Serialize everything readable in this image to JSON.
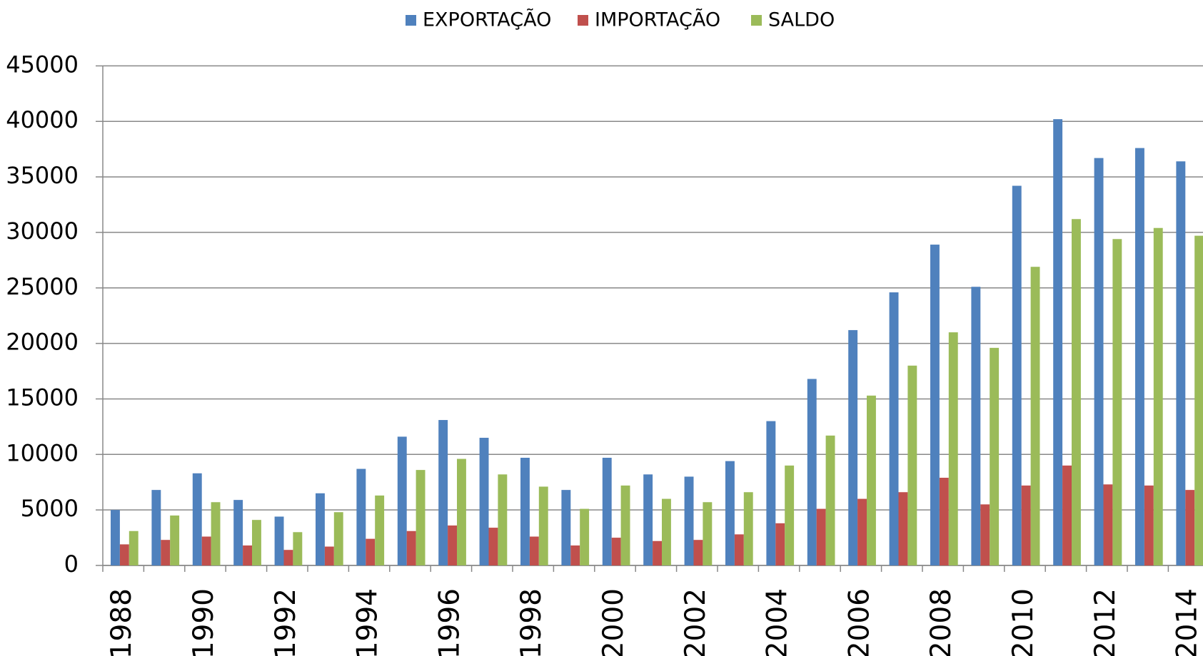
{
  "chart_data": {
    "type": "bar",
    "categories": [
      "1988",
      null,
      "1990",
      null,
      "1992",
      null,
      "1994",
      null,
      "1996",
      null,
      "1998",
      null,
      "2000",
      null,
      "2002",
      null,
      "2004",
      null,
      "2006",
      null,
      "2008",
      null,
      "2010",
      null,
      "2012",
      null,
      "2014"
    ],
    "series": [
      {
        "name": "EXPORTAÇÃO",
        "color": "#4f81bd",
        "values": [
          5000,
          6800,
          8300,
          5900,
          4400,
          6500,
          8700,
          11600,
          13100,
          11500,
          9700,
          6800,
          9700,
          8200,
          8000,
          9400,
          13000,
          16800,
          21200,
          24600,
          28900,
          25100,
          34200,
          40200,
          36700,
          37600,
          36400
        ]
      },
      {
        "name": "IMPORTAÇÃO",
        "color": "#c0504d",
        "values": [
          1900,
          2300,
          2600,
          1800,
          1400,
          1700,
          2400,
          3100,
          3600,
          3400,
          2600,
          1800,
          2500,
          2200,
          2300,
          2800,
          3800,
          5100,
          6000,
          6600,
          7900,
          5500,
          7200,
          9000,
          7300,
          7200,
          6800
        ]
      },
      {
        "name": "SALDO",
        "color": "#9bbb59",
        "values": [
          3100,
          4500,
          5700,
          4100,
          3000,
          4800,
          6300,
          8600,
          9600,
          8200,
          7100,
          5100,
          7200,
          6000,
          5700,
          6600,
          9000,
          11700,
          15300,
          18000,
          21000,
          19600,
          26900,
          31200,
          29400,
          30400,
          29700
        ]
      }
    ],
    "ylim": [
      0,
      45000
    ],
    "yticks": [
      0,
      5000,
      10000,
      15000,
      20000,
      25000,
      30000,
      35000,
      40000,
      45000
    ],
    "grid": true,
    "legend": "top"
  }
}
